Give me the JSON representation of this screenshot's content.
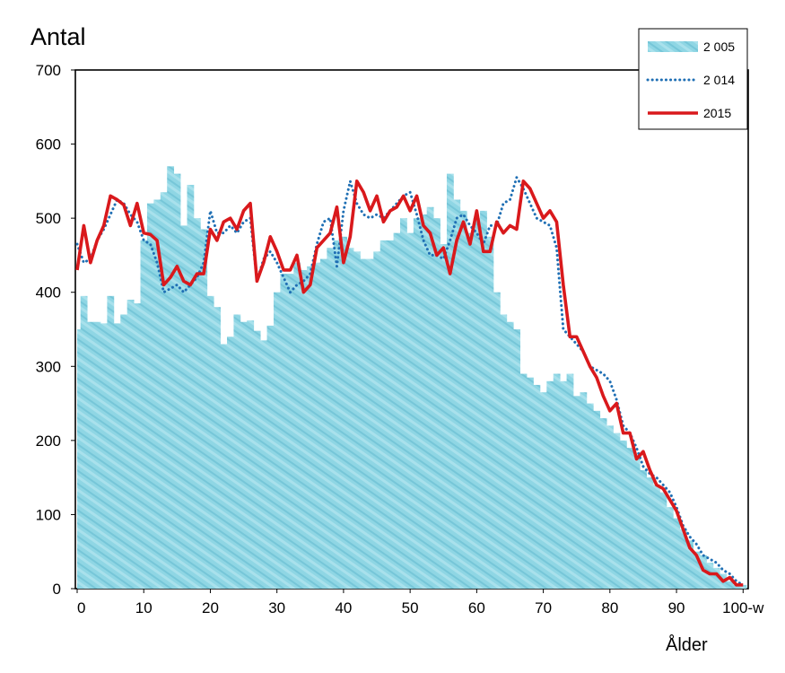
{
  "chart_data": {
    "type": "bar",
    "ylabel": "Antal",
    "xlabel": "Ålder",
    "ylim": [
      0,
      700
    ],
    "yticks": [
      "0",
      "100",
      "200",
      "300",
      "400",
      "500",
      "600",
      "700"
    ],
    "xticks": [
      {
        "x": 0,
        "label": "0"
      },
      {
        "x": 10,
        "label": "10"
      },
      {
        "x": 20,
        "label": "20"
      },
      {
        "x": 30,
        "label": "30"
      },
      {
        "x": 40,
        "label": "40"
      },
      {
        "x": 50,
        "label": "50"
      },
      {
        "x": 60,
        "label": "60"
      },
      {
        "x": 70,
        "label": "70"
      },
      {
        "x": 80,
        "label": "80"
      },
      {
        "x": 90,
        "label": "90"
      },
      {
        "x": 100,
        "label": "100-w"
      }
    ],
    "legend": "top-right",
    "x": [
      0,
      1,
      2,
      3,
      4,
      5,
      6,
      7,
      8,
      9,
      10,
      11,
      12,
      13,
      14,
      15,
      16,
      17,
      18,
      19,
      20,
      21,
      22,
      23,
      24,
      25,
      26,
      27,
      28,
      29,
      30,
      31,
      32,
      33,
      34,
      35,
      36,
      37,
      38,
      39,
      40,
      41,
      42,
      43,
      44,
      45,
      46,
      47,
      48,
      49,
      50,
      51,
      52,
      53,
      54,
      55,
      56,
      57,
      58,
      59,
      60,
      61,
      62,
      63,
      64,
      65,
      66,
      67,
      68,
      69,
      70,
      71,
      72,
      73,
      74,
      75,
      76,
      77,
      78,
      79,
      80,
      81,
      82,
      83,
      84,
      85,
      86,
      87,
      88,
      89,
      90,
      91,
      92,
      93,
      94,
      95,
      96,
      97,
      98,
      99,
      100
    ],
    "series": [
      {
        "name": "2 005",
        "style": "bar",
        "color": "#8fd6e4",
        "values": [
          350,
          395,
          360,
          360,
          358,
          395,
          358,
          370,
          390,
          385,
          470,
          520,
          525,
          535,
          570,
          560,
          490,
          545,
          500,
          485,
          395,
          380,
          330,
          340,
          370,
          360,
          362,
          348,
          335,
          355,
          400,
          425,
          425,
          440,
          430,
          435,
          440,
          445,
          460,
          470,
          475,
          460,
          455,
          445,
          445,
          455,
          470,
          470,
          480,
          500,
          480,
          500,
          505,
          515,
          500,
          465,
          560,
          525,
          510,
          480,
          500,
          510,
          475,
          400,
          370,
          360,
          350,
          290,
          285,
          275,
          265,
          280,
          290,
          280,
          290,
          260,
          265,
          250,
          240,
          230,
          220,
          210,
          200,
          190,
          180,
          160,
          150,
          140,
          130,
          110,
          95,
          80,
          65,
          50,
          45,
          35,
          28,
          20,
          10,
          5,
          5
        ]
      },
      {
        "name": "2 014",
        "style": "dotted",
        "color": "#1f6fb4",
        "values": [
          465,
          440,
          445,
          470,
          485,
          505,
          525,
          520,
          505,
          495,
          470,
          465,
          440,
          400,
          405,
          410,
          400,
          410,
          420,
          440,
          510,
          480,
          480,
          490,
          480,
          495,
          500,
          415,
          445,
          455,
          440,
          420,
          400,
          410,
          415,
          425,
          465,
          495,
          500,
          435,
          510,
          550,
          520,
          505,
          500,
          505,
          500,
          510,
          520,
          530,
          535,
          505,
          470,
          450,
          450,
          445,
          470,
          500,
          505,
          490,
          480,
          465,
          490,
          490,
          520,
          525,
          555,
          540,
          520,
          500,
          495,
          490,
          460,
          350,
          340,
          330,
          320,
          300,
          295,
          290,
          280,
          255,
          220,
          210,
          190,
          165,
          155,
          150,
          140,
          130,
          110,
          85,
          70,
          60,
          45,
          40,
          35,
          25,
          20,
          10,
          5
        ]
      },
      {
        "name": "2015",
        "style": "solid",
        "color": "#d9191c",
        "values": [
          430,
          490,
          440,
          470,
          490,
          530,
          525,
          518,
          490,
          520,
          480,
          478,
          470,
          410,
          420,
          435,
          415,
          410,
          425,
          425,
          485,
          470,
          495,
          500,
          485,
          510,
          520,
          415,
          440,
          475,
          455,
          430,
          430,
          450,
          400,
          410,
          460,
          470,
          480,
          515,
          440,
          475,
          550,
          535,
          510,
          530,
          495,
          510,
          515,
          530,
          510,
          530,
          490,
          480,
          450,
          460,
          425,
          470,
          495,
          465,
          510,
          455,
          455,
          495,
          480,
          490,
          485,
          550,
          540,
          520,
          500,
          510,
          495,
          410,
          340,
          340,
          320,
          300,
          285,
          260,
          240,
          250,
          210,
          210,
          175,
          185,
          160,
          140,
          135,
          120,
          105,
          80,
          55,
          45,
          25,
          20,
          20,
          10,
          15,
          5,
          5
        ]
      }
    ]
  }
}
